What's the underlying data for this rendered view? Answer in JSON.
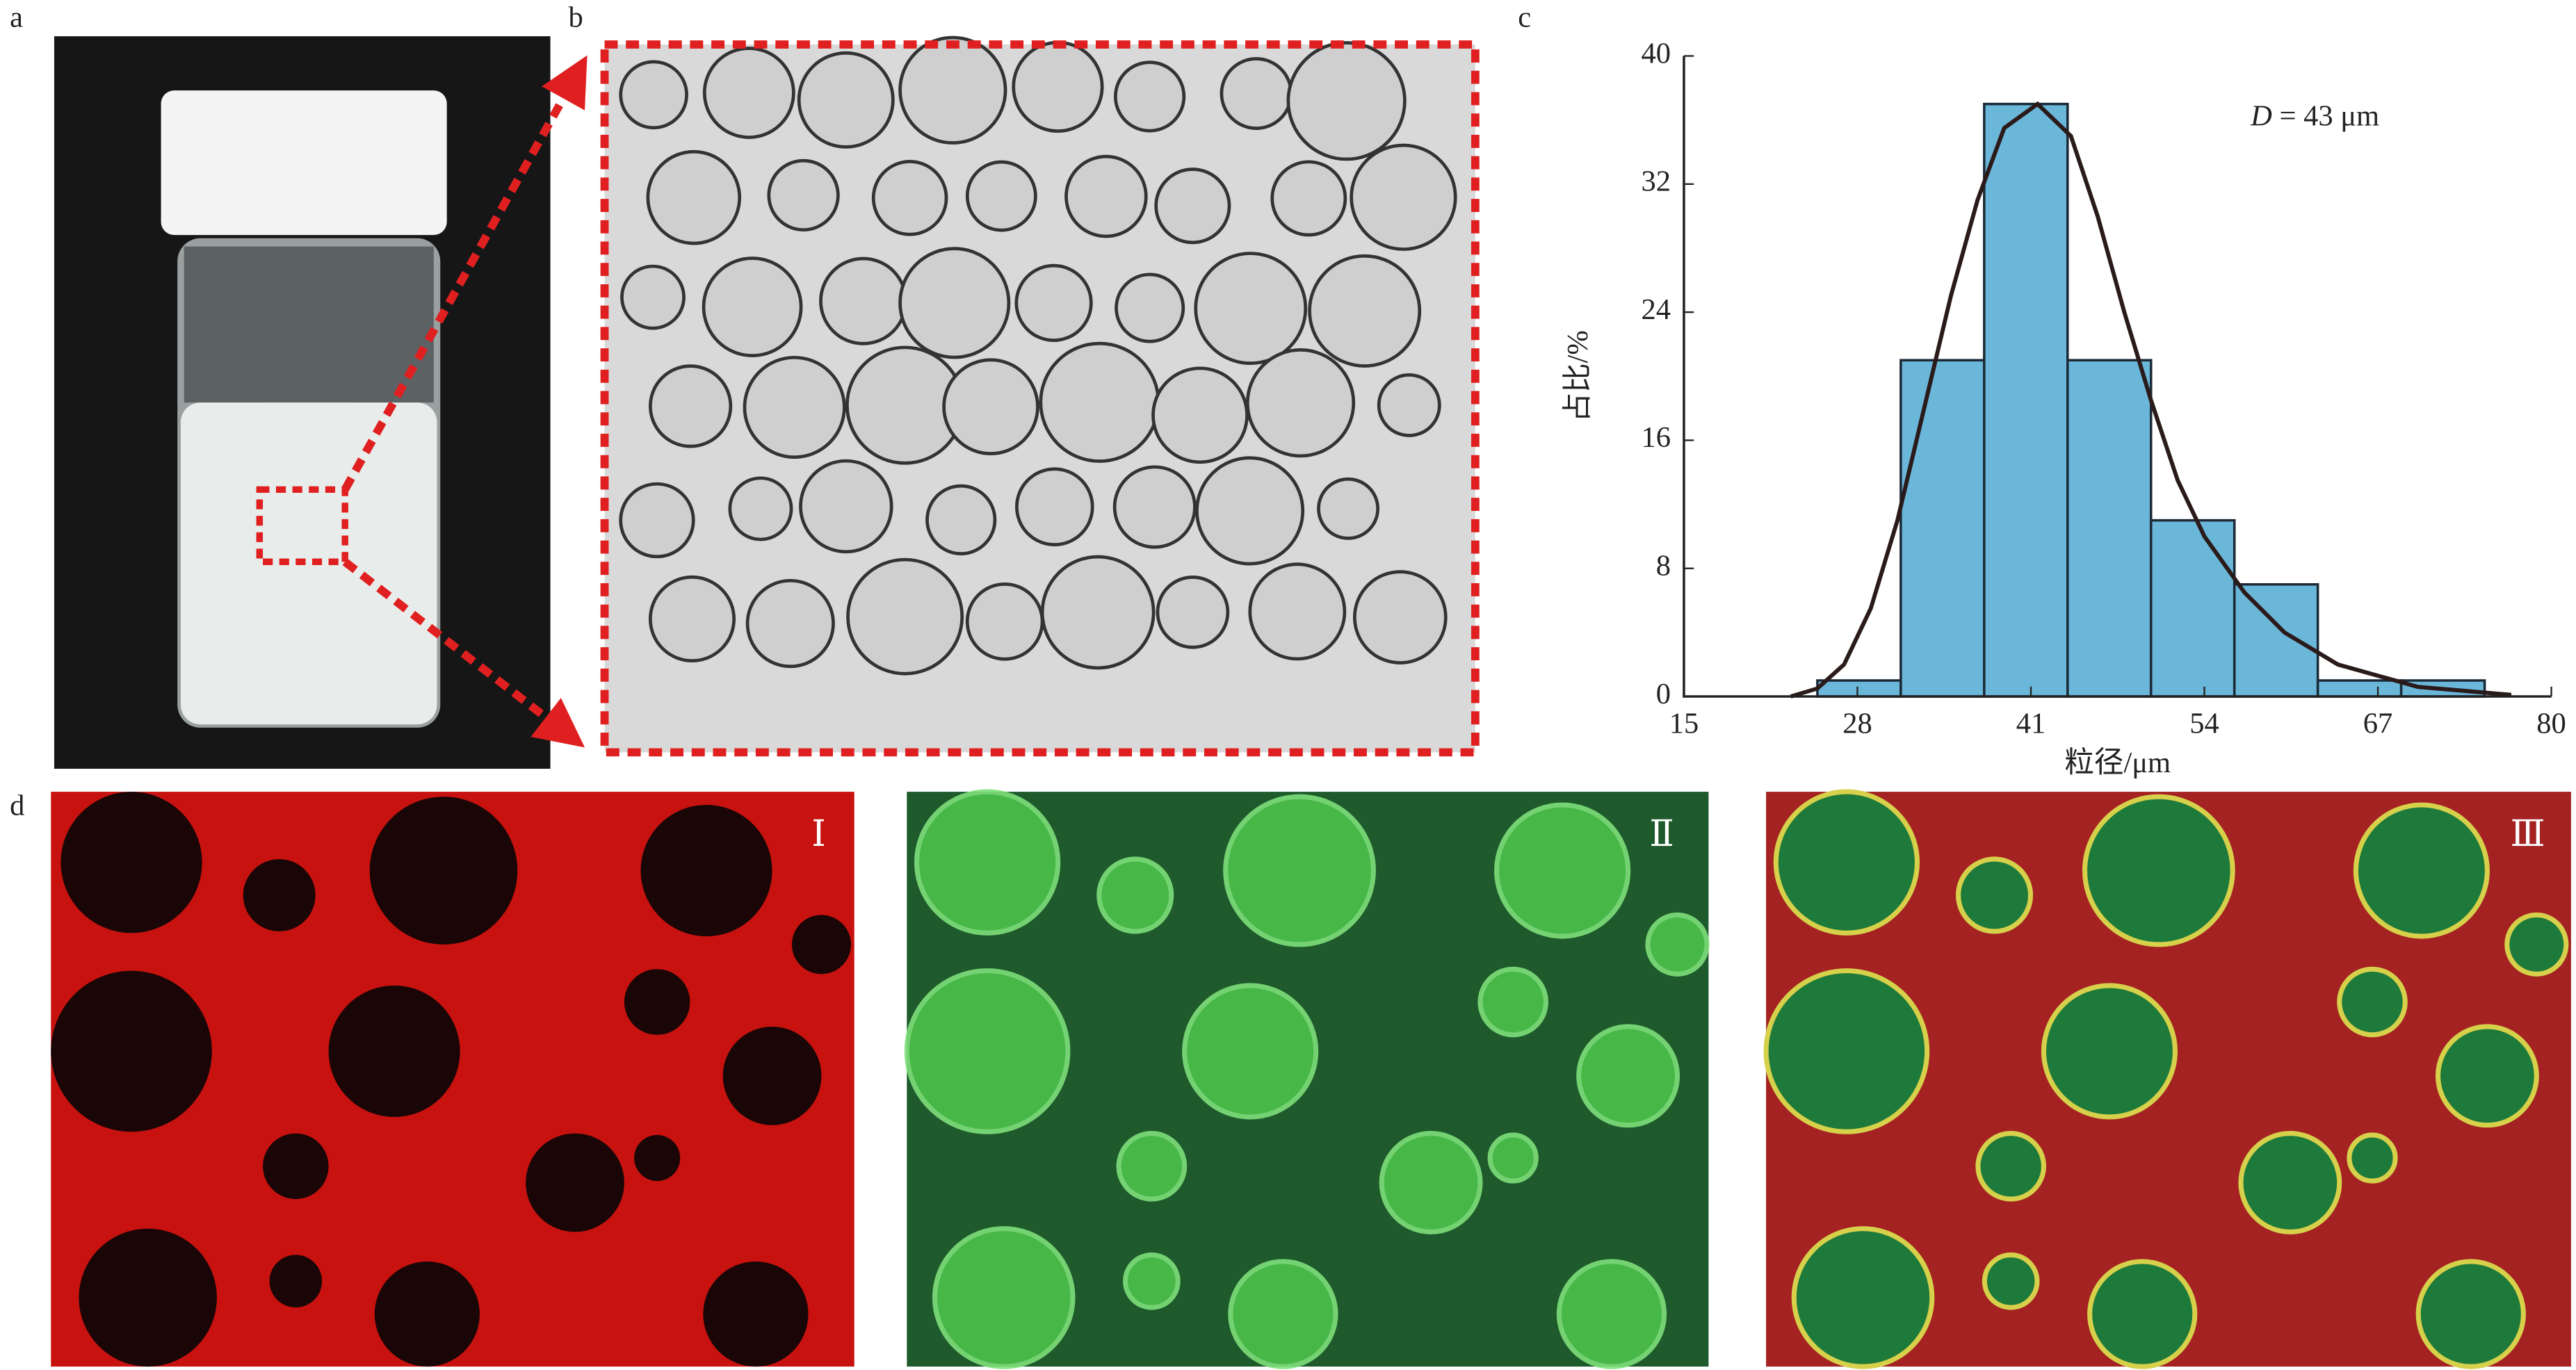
{
  "panels": {
    "a": "a",
    "b": "b",
    "c": "c",
    "d": "d",
    "d_labels": [
      "Ⅰ",
      "Ⅱ",
      "Ⅲ"
    ]
  },
  "chart_data": {
    "type": "histogram",
    "bins": [
      25,
      31.25,
      37.5,
      43.75,
      50,
      56.25,
      62.5,
      68.75,
      75
    ],
    "values": [
      1,
      21,
      37,
      21,
      11,
      7,
      1,
      1
    ],
    "color": "#6bb7d9",
    "fit": {
      "color": "#2a1a1a",
      "x": [
        23,
        25,
        27,
        29,
        31,
        33,
        35,
        37,
        39,
        41.5,
        44,
        46,
        48,
        50,
        52,
        54,
        57,
        60,
        64,
        70,
        77
      ],
      "values": [
        0,
        0.5,
        2,
        5.5,
        11,
        18,
        25,
        31,
        35.5,
        37,
        35,
        30,
        24,
        18.5,
        13.5,
        10,
        6.5,
        4,
        2,
        0.6,
        0.1
      ]
    },
    "annotation": {
      "italic": "D",
      "text": " = 43 μm"
    },
    "xlabel": "粒径/μm",
    "ylabel": "占比/%",
    "xlim": [
      15,
      80
    ],
    "xticks": [
      15,
      28,
      41,
      54,
      67,
      80
    ],
    "ylim": [
      0,
      40
    ],
    "yticks": [
      0,
      8,
      16,
      24,
      32,
      40
    ]
  }
}
